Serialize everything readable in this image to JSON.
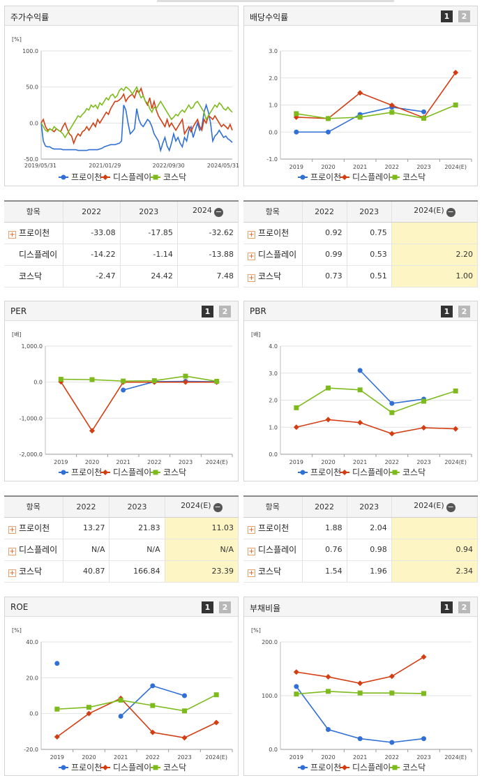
{
  "colors": {
    "s1": "#2f6fd6",
    "s2": "#d33d12",
    "s3": "#7dbb1c"
  },
  "legend": [
    "프로이천",
    "디스플레이",
    "코스닥"
  ],
  "panels": {
    "stock": {
      "title": "주가수익률"
    },
    "div": {
      "title": "배당수익률",
      "p1": "1",
      "p2": "2"
    },
    "per": {
      "title": "PER",
      "p1": "1",
      "p2": "2"
    },
    "pbr": {
      "title": "PBR",
      "p1": "1",
      "p2": "2"
    },
    "roe": {
      "title": "ROE",
      "p1": "1",
      "p2": "2"
    },
    "debt": {
      "title": "부채비율",
      "p1": "1",
      "p2": "2"
    }
  },
  "tables": {
    "stock": {
      "head": [
        "항목",
        "2022",
        "2023",
        "2024"
      ],
      "rows": [
        {
          "name": "프로이천",
          "plus": true,
          "v": [
            "-33.08",
            "-17.85",
            "-32.62"
          ]
        },
        {
          "name": "디스플레이",
          "plus": false,
          "v": [
            "-14.22",
            "-1.14",
            "-13.88"
          ]
        },
        {
          "name": "코스닥",
          "plus": false,
          "v": [
            "-2.47",
            "24.42",
            "7.48"
          ]
        }
      ]
    },
    "div": {
      "head": [
        "항목",
        "2022",
        "2023",
        "2024(E)"
      ],
      "rows": [
        {
          "name": "프로이천",
          "plus": true,
          "v": [
            "0.92",
            "0.75",
            ""
          ]
        },
        {
          "name": "디스플레이",
          "plus": true,
          "v": [
            "0.99",
            "0.53",
            "2.20"
          ]
        },
        {
          "name": "코스닥",
          "plus": true,
          "v": [
            "0.73",
            "0.51",
            "1.00"
          ]
        }
      ]
    },
    "per": {
      "head": [
        "항목",
        "2022",
        "2023",
        "2024(E)"
      ],
      "rows": [
        {
          "name": "프로이천",
          "plus": true,
          "v": [
            "13.27",
            "21.83",
            "11.03"
          ]
        },
        {
          "name": "디스플레이",
          "plus": true,
          "v": [
            "N/A",
            "N/A",
            "N/A"
          ]
        },
        {
          "name": "코스닥",
          "plus": true,
          "v": [
            "40.87",
            "166.84",
            "23.39"
          ]
        }
      ]
    },
    "pbr": {
      "head": [
        "항목",
        "2022",
        "2023",
        "2024(E)"
      ],
      "rows": [
        {
          "name": "프로이천",
          "plus": true,
          "v": [
            "1.88",
            "2.04",
            ""
          ]
        },
        {
          "name": "디스플레이",
          "plus": true,
          "v": [
            "0.76",
            "0.98",
            "0.94"
          ]
        },
        {
          "name": "코스닥",
          "plus": true,
          "v": [
            "1.54",
            "1.96",
            "2.34"
          ]
        }
      ]
    }
  },
  "chart_data": [
    {
      "id": "stock",
      "type": "line",
      "unit": "[%]",
      "ylim": [
        -50,
        100
      ],
      "yticks": [
        "100.0",
        "50.0",
        "0.0",
        "-50.0"
      ],
      "x_ticks": [
        "2019/05/31",
        "2021/01/29",
        "2022/09/30",
        "2024/05/31"
      ],
      "series": [
        {
          "name": "프로이천",
          "values": [
            0,
            -25,
            -32,
            -33,
            -33,
            -35,
            -36,
            -36,
            -36,
            -36,
            -37,
            -37,
            -37,
            -37,
            -37,
            -37,
            -37,
            -38,
            -38,
            -38,
            -38,
            -38,
            -37,
            -37,
            -37,
            -37,
            -37,
            -36,
            -35,
            -33,
            -32,
            -31,
            -30,
            -30,
            -30,
            -29,
            -28,
            -25,
            25,
            18,
            0,
            -15,
            -12,
            -8,
            20,
            5,
            -2,
            -5,
            0,
            5,
            2,
            -5,
            -15,
            -20,
            -25,
            -38,
            -28,
            -20,
            -32,
            -38,
            -28,
            -15,
            -25,
            -20,
            -28,
            -33,
            -20,
            -25,
            -10,
            -5,
            -20,
            -10,
            0,
            -10,
            -5,
            15,
            25,
            15,
            0,
            -25,
            -18,
            -15,
            -10,
            -15,
            -20,
            -18,
            -22,
            -24,
            -27
          ]
        },
        {
          "name": "디스플레이",
          "values": [
            0,
            5,
            -5,
            -10,
            -8,
            -10,
            -12,
            -8,
            -10,
            -12,
            -5,
            0,
            -8,
            -15,
            -18,
            -28,
            -20,
            -15,
            -18,
            -12,
            -10,
            -5,
            -10,
            -5,
            0,
            -5,
            5,
            0,
            5,
            10,
            15,
            12,
            20,
            25,
            30,
            30,
            32,
            35,
            40,
            30,
            35,
            38,
            40,
            35,
            45,
            42,
            48,
            38,
            30,
            25,
            35,
            20,
            30,
            18,
            10,
            5,
            0,
            -5,
            5,
            -5,
            0,
            -5,
            -10,
            -5,
            0,
            5,
            -15,
            -10,
            -5,
            -12,
            -5,
            0,
            5,
            -5,
            -10,
            5,
            0,
            10,
            8,
            5,
            10,
            5,
            0,
            -5,
            -2,
            -5,
            -8,
            -2,
            -10
          ]
        },
        {
          "name": "코스닥",
          "values": [
            0,
            -5,
            -10,
            -12,
            -8,
            -10,
            -5,
            -8,
            -10,
            -12,
            -15,
            -20,
            -15,
            -10,
            -5,
            0,
            5,
            10,
            8,
            12,
            15,
            20,
            18,
            25,
            22,
            25,
            20,
            28,
            25,
            30,
            35,
            32,
            38,
            40,
            35,
            38,
            45,
            48,
            45,
            50,
            48,
            45,
            40,
            45,
            50,
            42,
            35,
            38,
            30,
            28,
            20,
            15,
            22,
            20,
            25,
            30,
            25,
            20,
            15,
            10,
            5,
            8,
            12,
            10,
            15,
            18,
            15,
            20,
            25,
            20,
            22,
            28,
            30,
            25,
            20,
            15,
            5,
            10,
            15,
            20,
            25,
            22,
            28,
            25,
            20,
            18,
            22,
            18,
            15
          ]
        }
      ]
    },
    {
      "id": "div",
      "type": "line",
      "unit": "",
      "ylim": [
        -1,
        3
      ],
      "yticks": [
        "3.0",
        "2.0",
        "1.0",
        "0.0",
        "-1.0"
      ],
      "categories": [
        "2019",
        "2020",
        "2021",
        "2022",
        "2023",
        "2024(E)"
      ],
      "series": [
        {
          "name": "프로이천",
          "values": [
            0.0,
            0.0,
            0.65,
            0.92,
            0.75,
            null
          ]
        },
        {
          "name": "디스플레이",
          "values": [
            0.55,
            0.5,
            1.45,
            0.99,
            0.53,
            2.2
          ]
        },
        {
          "name": "코스닥",
          "values": [
            0.68,
            0.5,
            0.55,
            0.73,
            0.51,
            1.0
          ]
        }
      ]
    },
    {
      "id": "per",
      "type": "line",
      "unit": "[배]",
      "ylim": [
        -2000,
        1000
      ],
      "yticks": [
        "1,000.0",
        "0.0",
        "-1,000.0",
        "-2,000.0"
      ],
      "categories": [
        "2019",
        "2020",
        "2021",
        "2022",
        "2023",
        "2024(E)"
      ],
      "series": [
        {
          "name": "프로이천",
          "values": [
            null,
            null,
            -220,
            13.27,
            21.83,
            11.03
          ]
        },
        {
          "name": "디스플레이",
          "values": [
            10,
            -1350,
            0,
            0,
            0,
            0
          ]
        },
        {
          "name": "코스닥",
          "values": [
            80,
            70,
            30,
            40.87,
            166.84,
            23.39
          ]
        }
      ]
    },
    {
      "id": "pbr",
      "type": "line",
      "unit": "[배]",
      "ylim": [
        0,
        4
      ],
      "yticks": [
        "4.0",
        "3.0",
        "2.0",
        "1.0",
        "0.0"
      ],
      "categories": [
        "2019",
        "2020",
        "2021",
        "2022",
        "2023",
        "2024(E)"
      ],
      "series": [
        {
          "name": "프로이천",
          "values": [
            null,
            null,
            3.1,
            1.88,
            2.04,
            null
          ]
        },
        {
          "name": "디스플레이",
          "values": [
            1.0,
            1.28,
            1.17,
            0.76,
            0.98,
            0.94
          ]
        },
        {
          "name": "코스닥",
          "values": [
            1.72,
            2.45,
            2.38,
            1.54,
            1.96,
            2.34
          ]
        }
      ]
    },
    {
      "id": "roe",
      "type": "line",
      "unit": "[%]",
      "ylim": [
        -20,
        40
      ],
      "yticks": [
        "40.0",
        "20.0",
        "0.0",
        "-20.0"
      ],
      "categories": [
        "2019",
        "2020",
        "2021",
        "2022",
        "2023",
        "2024(E)"
      ],
      "series": [
        {
          "name": "프로이천",
          "values": [
            28,
            null,
            -1.5,
            15.5,
            10,
            null
          ]
        },
        {
          "name": "디스플레이",
          "values": [
            -13,
            0,
            8.5,
            -10.5,
            -13.5,
            -5
          ]
        },
        {
          "name": "코스닥",
          "values": [
            2.5,
            3.5,
            7.5,
            4.5,
            1.5,
            10.5
          ]
        }
      ]
    },
    {
      "id": "debt",
      "type": "line",
      "unit": "[%]",
      "ylim": [
        0,
        200
      ],
      "yticks": [
        "200.0",
        "100.0",
        "0.0"
      ],
      "categories": [
        "2019",
        "2020",
        "2021",
        "2022",
        "2023",
        "2024(E)"
      ],
      "series": [
        {
          "name": "프로이천",
          "values": [
            117,
            37,
            20,
            13,
            20,
            null
          ]
        },
        {
          "name": "디스플레이",
          "values": [
            144,
            135,
            123,
            136,
            172,
            null
          ]
        },
        {
          "name": "코스닥",
          "values": [
            103,
            108,
            105,
            105,
            104,
            null
          ]
        }
      ]
    }
  ]
}
